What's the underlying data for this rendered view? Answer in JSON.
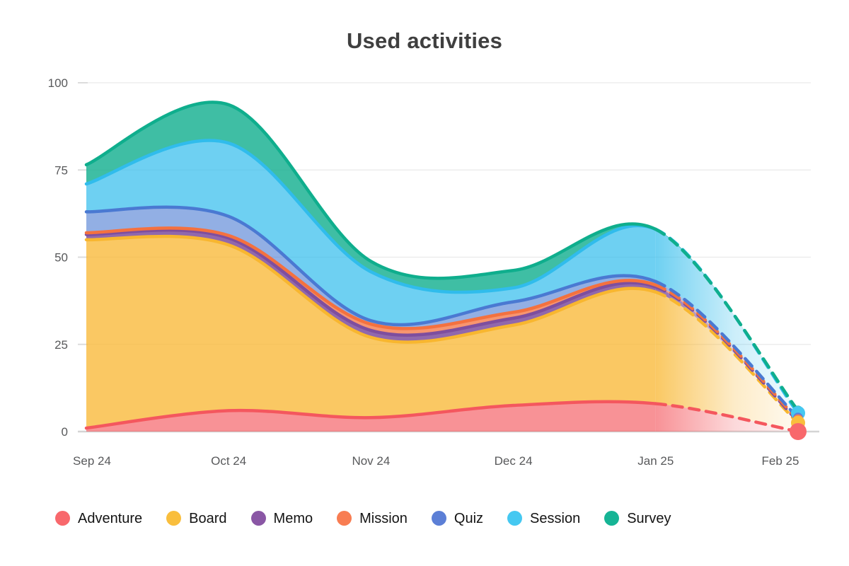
{
  "chart_data": {
    "type": "area",
    "stacked": true,
    "title": "Used activities",
    "categories": [
      "Sep 24",
      "Oct 24",
      "Nov 24",
      "Dec 24",
      "Jan 25",
      "Feb 25"
    ],
    "yticks": [
      0,
      25,
      50,
      75,
      100
    ],
    "ylim": [
      0,
      100
    ],
    "grid": true,
    "legend_position": "bottom",
    "forecast_start_index": 4,
    "forecast_style": "dashed-faded",
    "series": [
      {
        "name": "Adventure",
        "color": "#f4575e",
        "legend_color": "#f8686c",
        "fill_alpha": 0.65,
        "values": [
          1,
          6,
          4,
          7.5,
          8,
          0
        ]
      },
      {
        "name": "Board",
        "color": "#f8b62f",
        "legend_color": "#f9be3d",
        "fill_alpha": 0.75,
        "values": [
          54,
          47.5,
          23,
          23,
          32,
          2.5
        ]
      },
      {
        "name": "Memo",
        "color": "#7e4e9e",
        "legend_color": "#8a57a5",
        "fill_alpha": 0.85,
        "values": [
          1.5,
          2,
          2,
          2,
          1.5,
          0.5
        ]
      },
      {
        "name": "Mission",
        "color": "#f4713f",
        "legend_color": "#f87d52",
        "fill_alpha": 0.75,
        "values": [
          0.5,
          0.7,
          1.8,
          1.7,
          0.5,
          0.5
        ]
      },
      {
        "name": "Quiz",
        "color": "#4a79d2",
        "legend_color": "#5c7fd6",
        "fill_alpha": 0.6,
        "values": [
          6,
          5.5,
          1,
          3,
          1,
          0.5
        ]
      },
      {
        "name": "Session",
        "color": "#30bcec",
        "legend_color": "#45c8f1",
        "fill_alpha": 0.7,
        "values": [
          8,
          21,
          14,
          4,
          15,
          1.3
        ]
      },
      {
        "name": "Survey",
        "color": "#0fae8d",
        "legend_color": "#16b495",
        "fill_alpha": 0.8,
        "values": [
          5.5,
          11,
          3,
          5,
          0,
          0.7
        ]
      }
    ]
  }
}
